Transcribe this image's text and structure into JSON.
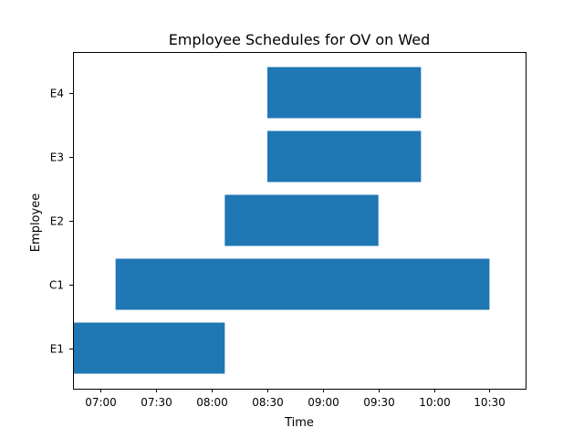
{
  "chart_data": {
    "type": "bar",
    "orientation": "horizontal",
    "title": "Employee Schedules for OV on Wed",
    "xlabel": "Time",
    "ylabel": "Employee",
    "xlim": [
      "06:45",
      "10:50"
    ],
    "x_ticks": [
      "07:00",
      "07:30",
      "08:00",
      "08:30",
      "09:00",
      "09:30",
      "10:00",
      "10:30"
    ],
    "categories": [
      "E1",
      "C1",
      "E2",
      "E3",
      "E4"
    ],
    "bars": [
      {
        "employee": "E1",
        "start": "06:45",
        "end": "08:07"
      },
      {
        "employee": "C1",
        "start": "07:08",
        "end": "10:30"
      },
      {
        "employee": "E2",
        "start": "08:07",
        "end": "09:30"
      },
      {
        "employee": "E3",
        "start": "08:30",
        "end": "09:53"
      },
      {
        "employee": "E4",
        "start": "08:30",
        "end": "09:53"
      }
    ],
    "bar_color": "#1f77b4",
    "grid": false,
    "legend": "none"
  }
}
